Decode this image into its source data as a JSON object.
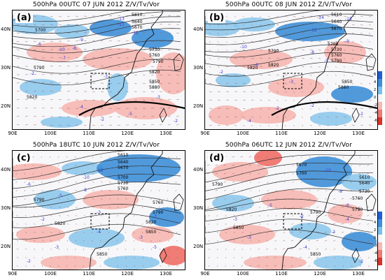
{
  "panels": [
    {
      "title": "500hPa 00UTC 07 JUN 2012 Z/V/Tv/Vor",
      "label": "(a)",
      "lat_labels": [
        "40N",
        "30N",
        "20N"
      ],
      "lon_labels": [
        "90E",
        "100E",
        "110E",
        "120E",
        "130E"
      ],
      "contour_labels": [
        {
          "text": "5610"
        },
        {
          "text": "5640"
        },
        {
          "text": "5670"
        },
        {
          "text": "5700"
        },
        {
          "text": "5730"
        },
        {
          "text": "5760"
        },
        {
          "text": "5790"
        },
        {
          "text": "5820"
        },
        {
          "text": "5850"
        },
        {
          "text": "5880"
        },
        {
          "text": "5790"
        },
        {
          "text": "5820"
        }
      ],
      "vort_labels": [
        "-13",
        "-11",
        "-12",
        "-6",
        "-10",
        "-9",
        "-8",
        "-7",
        "-2",
        "-3",
        "-3",
        "-5",
        "-2",
        "-4",
        "-2"
      ],
      "has_trough_line": true
    },
    {
      "title": "500hPa 00UTC 08 JUN 2012 Z/V/Tv/Vor",
      "label": "(b)",
      "lat_labels": [
        "40N",
        "30N",
        "20N"
      ],
      "lon_labels": [
        "90E",
        "100E",
        "110E",
        "120E",
        "130E"
      ],
      "contour_labels": [
        {
          "text": "5610"
        },
        {
          "text": "5640"
        },
        {
          "text": "5670"
        },
        {
          "text": "5700"
        },
        {
          "text": "5730"
        },
        {
          "text": "5760"
        },
        {
          "text": "5790"
        },
        {
          "text": "5820"
        },
        {
          "text": "5850"
        },
        {
          "text": "5880"
        },
        {
          "text": "5790"
        },
        {
          "text": "5820"
        }
      ],
      "vort_labels": [
        "-14",
        "-15",
        "-12",
        "-10",
        "-8",
        "-6",
        "-9",
        "-5",
        "-2",
        "-3",
        "-2",
        "-4",
        "-2",
        "-2"
      ],
      "has_trough_line": true
    },
    {
      "title": "500hPa 18UTC 10 JUN 2012 Z/V/Tv/Vor",
      "label": "(c)",
      "lat_labels": [
        "40N",
        "30N",
        "20N"
      ],
      "lon_labels": [
        "90E",
        "100E",
        "110E",
        "120E",
        "130E"
      ],
      "contour_labels": [
        {
          "text": "5610"
        },
        {
          "text": "5640"
        },
        {
          "text": "5670"
        },
        {
          "text": "5700"
        },
        {
          "text": "5730"
        },
        {
          "text": "5760"
        },
        {
          "text": "5790"
        },
        {
          "text": "5820"
        },
        {
          "text": "5850"
        },
        {
          "text": "5760"
        },
        {
          "text": "5790"
        },
        {
          "text": "5820"
        },
        {
          "text": "5850"
        }
      ],
      "vort_labels": [
        "-10",
        "-12",
        "-8",
        "-6",
        "-5",
        "-3",
        "-2",
        "-4",
        "-3",
        "-5",
        "-2",
        "-3",
        "-2"
      ],
      "has_trough_line": false
    },
    {
      "title": "500hPa 06UTC 12 JUN 2012 Z/V/Tv/Vor",
      "label": "(d)",
      "lat_labels": [
        "40N",
        "30N",
        "20N"
      ],
      "lon_labels": [
        "90E",
        "100E",
        "110E",
        "120E",
        "130E"
      ],
      "contour_labels": [
        {
          "text": "5610"
        },
        {
          "text": "5640"
        },
        {
          "text": "5670"
        },
        {
          "text": "5700"
        },
        {
          "text": "5730"
        },
        {
          "text": "5760"
        },
        {
          "text": "5790"
        },
        {
          "text": "5820"
        },
        {
          "text": "5850"
        },
        {
          "text": "5790"
        },
        {
          "text": "5850"
        },
        {
          "text": "5790"
        }
      ],
      "vort_labels": [
        "-6",
        "-8",
        "-10",
        "-4",
        "-3",
        "-2",
        "-5",
        "-3",
        "-4",
        "-2",
        "-2"
      ],
      "has_trough_line": false
    }
  ],
  "colorbar": {
    "labels": [
      "6",
      "4",
      "2",
      "0",
      "-2",
      "-4",
      "-6"
    ],
    "colors": [
      "#1f5fd6",
      "#3f8ee0",
      "#7cc0ec",
      "#f4f4f4",
      "#f6b9b4",
      "#ef7a72",
      "#d9332a"
    ]
  },
  "colors": {
    "positive": "#8ec8ec",
    "positive_strong": "#3d8fd8",
    "negative": "#f6b6b0",
    "negative_strong": "#ee6e66",
    "contour": "#333333",
    "vort_label": "#3b3bd0"
  }
}
